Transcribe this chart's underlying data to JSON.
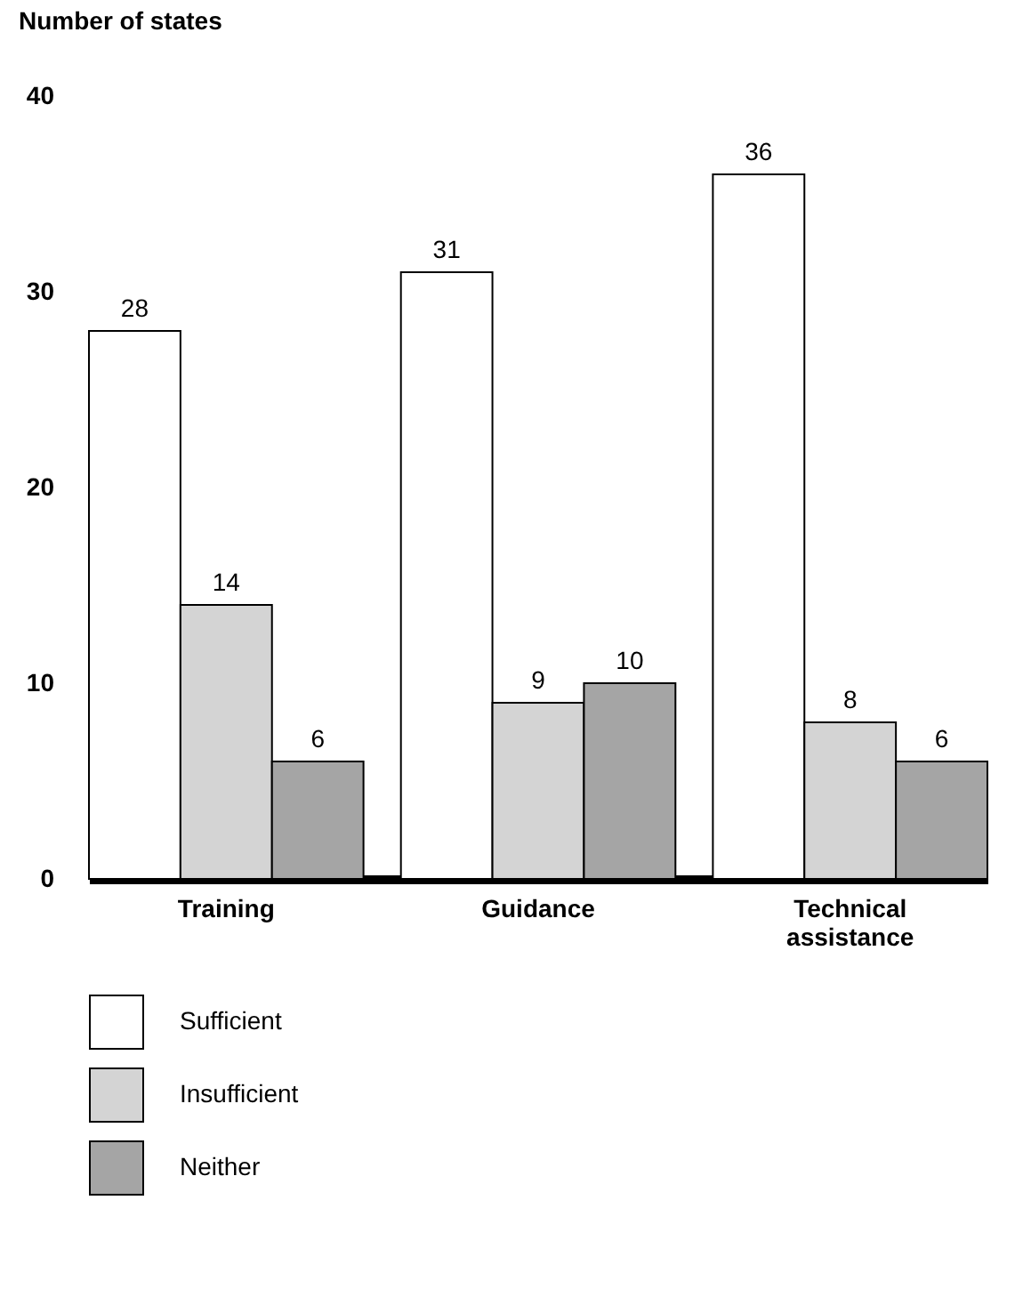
{
  "chart_data": {
    "type": "bar",
    "ylabel": "Number of states",
    "categories": [
      "Training",
      "Guidance",
      "Technical assistance"
    ],
    "series": [
      {
        "name": "Sufficient",
        "color": "#ffffff",
        "values": [
          28,
          31,
          36
        ]
      },
      {
        "name": "Insufficient",
        "color": "#d4d4d4",
        "values": [
          14,
          9,
          8
        ]
      },
      {
        "name": "Neither",
        "color": "#a5a5a5",
        "values": [
          6,
          10,
          6
        ]
      }
    ],
    "ylim": [
      0,
      40
    ],
    "yticks": [
      0,
      10,
      20,
      30,
      40
    ],
    "grid": false,
    "legend": "bottom",
    "data_labels": true
  }
}
